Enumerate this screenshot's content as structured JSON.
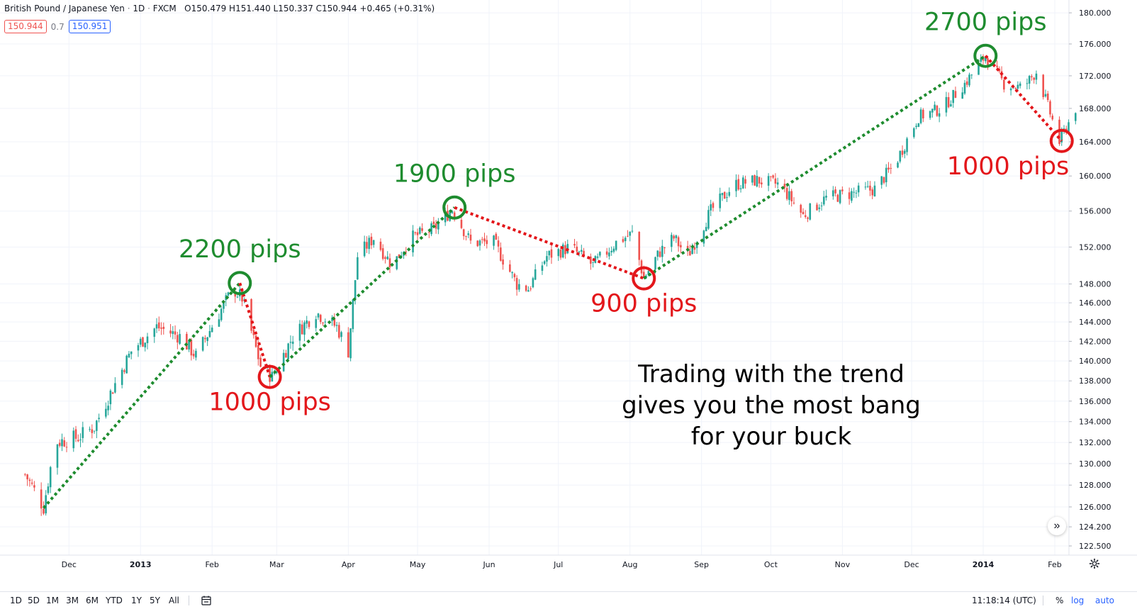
{
  "header": {
    "symbol": "British Pound / Japanese Yen",
    "interval": "1D",
    "source": "FXCM",
    "ohlc": "O150.479 H151.440 L150.337 C150.944 +0.465 (+0.31%)",
    "sell_price": "150.944",
    "spread": "0.7",
    "buy_price": "150.951"
  },
  "bottom_bar": {
    "ranges": [
      "1D",
      "5D",
      "1M",
      "3M",
      "6M",
      "YTD",
      "1Y",
      "5Y",
      "All"
    ],
    "clock": "11:18:14 (UTC)",
    "percent_label": "%",
    "log_label": "log",
    "auto_label": "auto"
  },
  "chart_data": {
    "type": "candlestick",
    "title": "",
    "xlabel": "",
    "ylabel": "",
    "ylim": [
      122.0,
      182.0
    ],
    "yscale": "log",
    "grid": true,
    "y_ticks": [
      "122.500",
      "124.200",
      "126.000",
      "128.000",
      "130.000",
      "132.000",
      "134.000",
      "136.000",
      "138.000",
      "140.000",
      "142.000",
      "144.000",
      "146.000",
      "148.000",
      "152.000",
      "156.000",
      "160.000",
      "164.000",
      "168.000",
      "172.000",
      "176.000",
      "180.000"
    ],
    "x_ticks": [
      "Dec",
      "2013",
      "Feb",
      "Mar",
      "Apr",
      "May",
      "Jun",
      "Jul",
      "Aug",
      "Sep",
      "Oct",
      "Nov",
      "Dec",
      "2014",
      "Feb"
    ],
    "price_path": [
      [
        "2012-11-12",
        129.0
      ],
      [
        "2012-11-20",
        126.0
      ],
      [
        "2012-11-25",
        132.0
      ],
      [
        "2012-12-05",
        132.5
      ],
      [
        "2012-12-12",
        133.5
      ],
      [
        "2012-12-28",
        141.0
      ],
      [
        "2013-01-08",
        143.5
      ],
      [
        "2013-01-18",
        142.5
      ],
      [
        "2013-01-25",
        140.5
      ],
      [
        "2013-02-10",
        147.5
      ],
      [
        "2013-02-14",
        146.5
      ],
      [
        "2013-02-22",
        139.5
      ],
      [
        "2013-02-27",
        138.4
      ],
      [
        "2013-03-08",
        142.5
      ],
      [
        "2013-03-18",
        145.0
      ],
      [
        "2013-03-27",
        143.5
      ],
      [
        "2013-04-01",
        141.0
      ],
      [
        "2013-04-05",
        151.0
      ],
      [
        "2013-04-12",
        153.0
      ],
      [
        "2013-04-20",
        150.0
      ],
      [
        "2013-04-28",
        153.0
      ],
      [
        "2013-05-08",
        154.0
      ],
      [
        "2013-05-16",
        156.2
      ],
      [
        "2013-05-24",
        152.5
      ],
      [
        "2013-06-03",
        152.5
      ],
      [
        "2013-06-13",
        148.0
      ],
      [
        "2013-06-18",
        147.5
      ],
      [
        "2013-06-26",
        151.0
      ],
      [
        "2013-07-06",
        152.0
      ],
      [
        "2013-07-16",
        150.0
      ],
      [
        "2013-07-26",
        152.5
      ],
      [
        "2013-08-02",
        153.5
      ],
      [
        "2013-08-07",
        148.6
      ],
      [
        "2013-08-14",
        151.5
      ],
      [
        "2013-08-20",
        153.0
      ],
      [
        "2013-08-26",
        151.0
      ],
      [
        "2013-09-05",
        156.0
      ],
      [
        "2013-09-15",
        159.0
      ],
      [
        "2013-09-25",
        159.5
      ],
      [
        "2013-10-05",
        159.0
      ],
      [
        "2013-10-15",
        155.5
      ],
      [
        "2013-10-25",
        157.5
      ],
      [
        "2013-11-05",
        158.0
      ],
      [
        "2013-11-15",
        158.5
      ],
      [
        "2013-11-24",
        161.5
      ],
      [
        "2013-12-04",
        167.0
      ],
      [
        "2013-12-14",
        168.0
      ],
      [
        "2013-12-24",
        171.0
      ],
      [
        "2014-01-02",
        174.5
      ],
      [
        "2014-01-10",
        171.0
      ],
      [
        "2014-01-18",
        170.5
      ],
      [
        "2014-01-24",
        172.5
      ],
      [
        "2014-02-03",
        164.0
      ],
      [
        "2014-02-10",
        168.0
      ]
    ],
    "trend_lines": [
      {
        "color": "green",
        "from": [
          "2012-11-20",
          125.9
        ],
        "to": [
          "2013-02-13",
          148.1
        ]
      },
      {
        "color": "red",
        "from": [
          "2013-02-13",
          148.1
        ],
        "to": [
          "2013-02-26",
          138.4
        ]
      },
      {
        "color": "green",
        "from": [
          "2013-02-26",
          138.4
        ],
        "to": [
          "2013-05-17",
          156.4
        ]
      },
      {
        "color": "red",
        "from": [
          "2013-05-17",
          156.4
        ],
        "to": [
          "2013-08-07",
          148.6
        ]
      },
      {
        "color": "green",
        "from": [
          "2013-08-07",
          148.6
        ],
        "to": [
          "2014-01-02",
          174.5
        ]
      },
      {
        "color": "red",
        "from": [
          "2014-01-02",
          174.5
        ],
        "to": [
          "2014-02-04",
          164.1
        ]
      }
    ],
    "annotations": [
      {
        "text": "2200 pips",
        "color": "green",
        "at": [
          "2013-02-13",
          148.1
        ],
        "position": "above"
      },
      {
        "text": "1000 pips",
        "color": "red",
        "at": [
          "2013-02-26",
          138.4
        ],
        "position": "below"
      },
      {
        "text": "1900 pips",
        "color": "green",
        "at": [
          "2013-05-17",
          156.4
        ],
        "position": "above"
      },
      {
        "text": "900 pips",
        "color": "red",
        "at": [
          "2013-08-07",
          148.6
        ],
        "position": "below"
      },
      {
        "text": "2700 pips",
        "color": "green",
        "at": [
          "2014-01-02",
          174.5
        ],
        "position": "above"
      },
      {
        "text": "1000 pips",
        "color": "red",
        "at": [
          "2014-02-04",
          164.1
        ],
        "position": "below"
      }
    ],
    "caption_lines": [
      "Trading with the trend",
      "gives you the most bang",
      "for your buck"
    ],
    "colors": {
      "up": "#26a69a",
      "down": "#ef5350",
      "green": "#1e8c2f",
      "red": "#e3171b",
      "grid": "#f0f3fa",
      "axis_text": "#131722"
    }
  }
}
